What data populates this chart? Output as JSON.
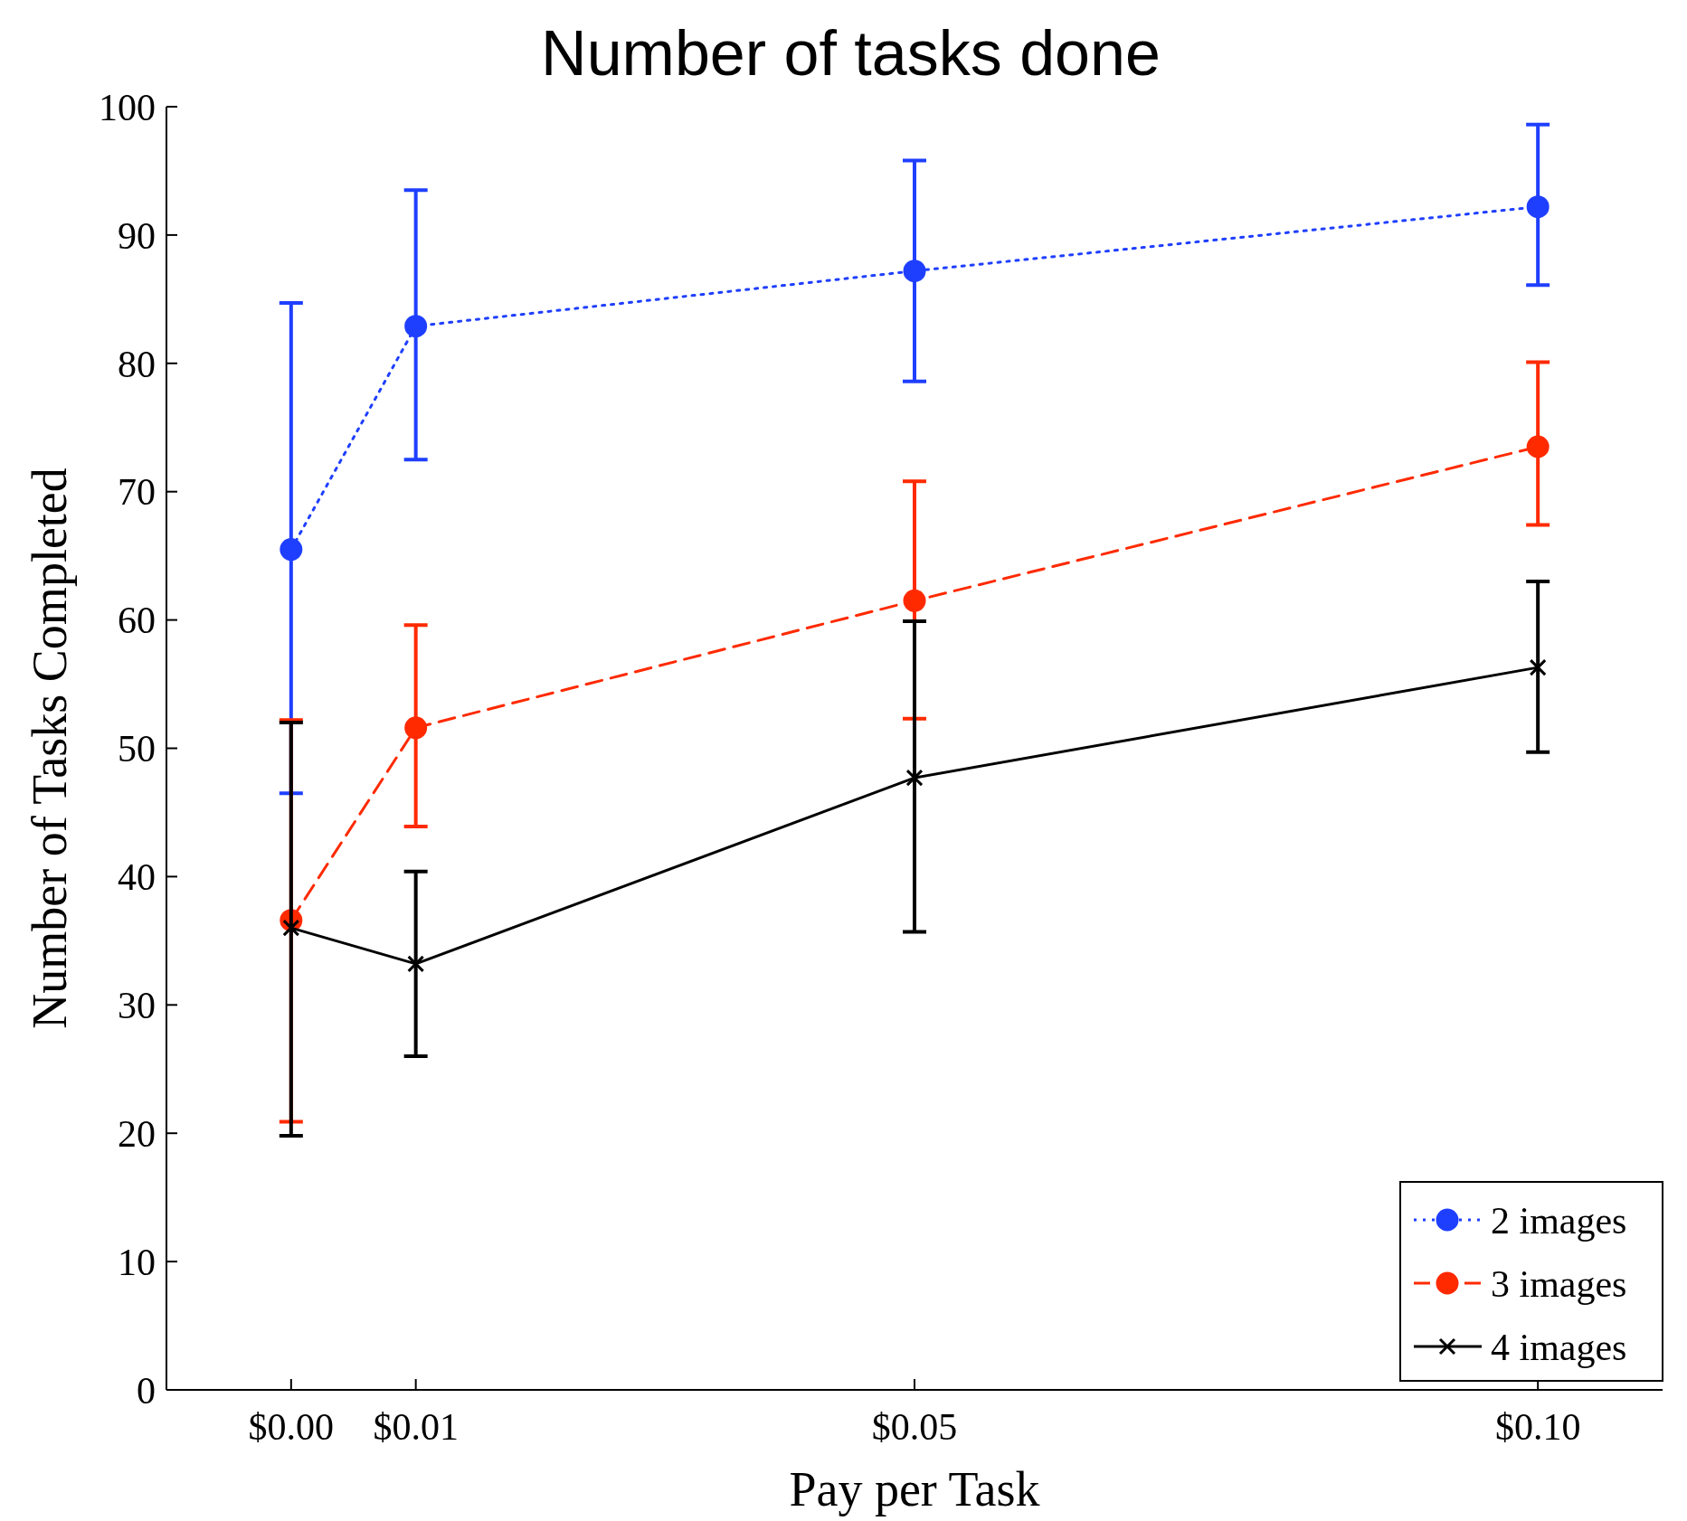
{
  "chart_data": {
    "type": "line",
    "title": "Number of tasks done",
    "xlabel": "Pay per Task",
    "ylabel": "Number of Tasks Completed",
    "x": [
      0,
      0.01,
      0.05,
      0.1
    ],
    "xlim": [
      -0.01,
      0.11
    ],
    "xticks": [
      {
        "value": 0,
        "label": "$0.00"
      },
      {
        "value": 0.01,
        "label": "$0.01"
      },
      {
        "value": 0.05,
        "label": "$0.05"
      },
      {
        "value": 0.1,
        "label": "$0.10"
      }
    ],
    "ylim": [
      0,
      100
    ],
    "yticks": [
      0,
      10,
      20,
      30,
      40,
      50,
      60,
      70,
      80,
      90,
      100
    ],
    "legend": "bottom right",
    "grid": false,
    "series": [
      {
        "name": "2 images",
        "color": "#1f3fff",
        "marker": "circle",
        "line_style": "dotted",
        "values": [
          65.5,
          82.9,
          87.2,
          92.2
        ],
        "errors": [
          [
            46.5,
            84.7
          ],
          [
            72.5,
            93.5
          ],
          [
            78.6,
            95.8
          ],
          [
            86.1,
            98.6
          ]
        ]
      },
      {
        "name": "3 images",
        "color": "#ff2a00",
        "marker": "circle",
        "line_style": "dashed",
        "values": [
          36.6,
          51.6,
          61.5,
          73.5
        ],
        "errors": [
          [
            20.9,
            52.2
          ],
          [
            43.9,
            59.6
          ],
          [
            52.3,
            70.8
          ],
          [
            67.4,
            80.1
          ]
        ]
      },
      {
        "name": "4 images",
        "color": "#000000",
        "marker": "cross",
        "line_style": "solid",
        "values": [
          36.0,
          33.2,
          47.7,
          56.3
        ],
        "errors": [
          [
            19.8,
            52.0
          ],
          [
            26.0,
            40.4
          ],
          [
            35.7,
            59.9
          ],
          [
            49.7,
            63.0
          ]
        ]
      }
    ]
  }
}
